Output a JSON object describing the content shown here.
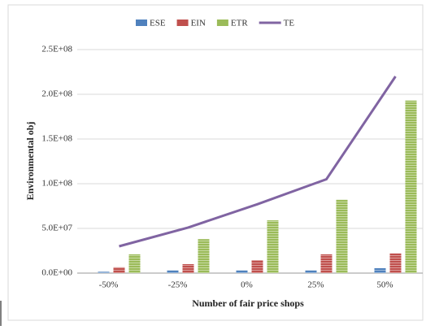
{
  "chart_data": {
    "type": "bar",
    "categories": [
      "-50%",
      "-25%",
      "0%",
      "25%",
      "50%"
    ],
    "series": [
      {
        "name": "ESE",
        "color": "#4f81bd",
        "values": [
          1500000,
          3000000,
          3000000,
          3000000,
          5500000
        ]
      },
      {
        "name": "EIN",
        "color": "#c0504d",
        "values": [
          6500000,
          10000000,
          14500000,
          21000000,
          22000000
        ]
      },
      {
        "name": "ETR",
        "color": "#9bbb59",
        "values": [
          21000000,
          38000000,
          59000000,
          82000000,
          193000000
        ]
      },
      {
        "name": "TE",
        "color": "#8064a2",
        "type": "line",
        "values": [
          30000000,
          51000000,
          77000000,
          105000000,
          220000000
        ]
      }
    ],
    "ylabel": "Environmental obj",
    "xlabel": "Number of fair price shops",
    "ylim": [
      0,
      250000000
    ],
    "yticks": [
      {
        "value": 0,
        "label": "0.0E+00"
      },
      {
        "value": 50000000,
        "label": "5.0E+07"
      },
      {
        "value": 100000000,
        "label": "1.0E+08"
      },
      {
        "value": 150000000,
        "label": "1.5E+08"
      },
      {
        "value": 200000000,
        "label": "2.0E+08"
      },
      {
        "value": 250000000,
        "label": "2.5E+08"
      }
    ],
    "grid": true,
    "legend": "top"
  }
}
